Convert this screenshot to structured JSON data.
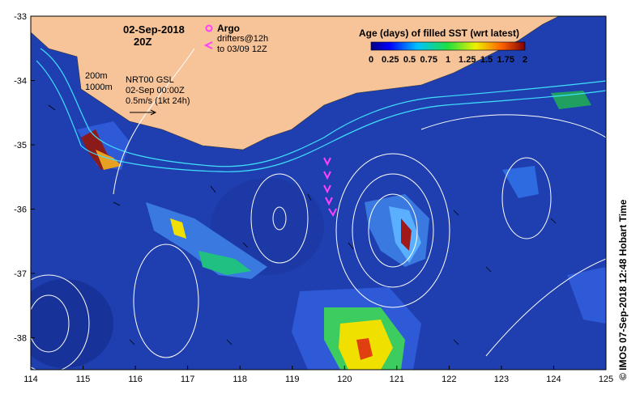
{
  "map": {
    "date_label": "02-Sep-2018",
    "time_label": "20Z",
    "argo_label": "Argo",
    "drifters_line1": "drifters@12h",
    "drifters_line2": "to 03/09 12Z",
    "iso_200": "200m",
    "iso_1000": "1000m",
    "model_line1": "NRT00 GSL",
    "model_line2": "02-Sep 00:00Z",
    "model_line3": "0.5m/s (1kt 24h)",
    "credit": "© IMOS 07-Sep-2018 12:48 Hobart Time",
    "colorbar": {
      "title": "Age (days) of filled SST (wrt latest)",
      "ticks": [
        "0",
        "0.25",
        "0.5",
        "0.75",
        "1",
        "1.25",
        "1.5",
        "1.75",
        "2"
      ]
    },
    "x_ticks": [
      "114",
      "115",
      "116",
      "117",
      "118",
      "119",
      "120",
      "121",
      "122",
      "123",
      "124",
      "125"
    ],
    "y_ticks": [
      "-33",
      "-34",
      "-35",
      "-36",
      "-37",
      "-38"
    ],
    "colors": {
      "ocean": "#1f3fb0",
      "land": "#f7c49a",
      "argo": "#ff40ff",
      "drifter": "#ff40ff",
      "isobath": "#40e0ff",
      "contour": "#ffffff"
    }
  }
}
